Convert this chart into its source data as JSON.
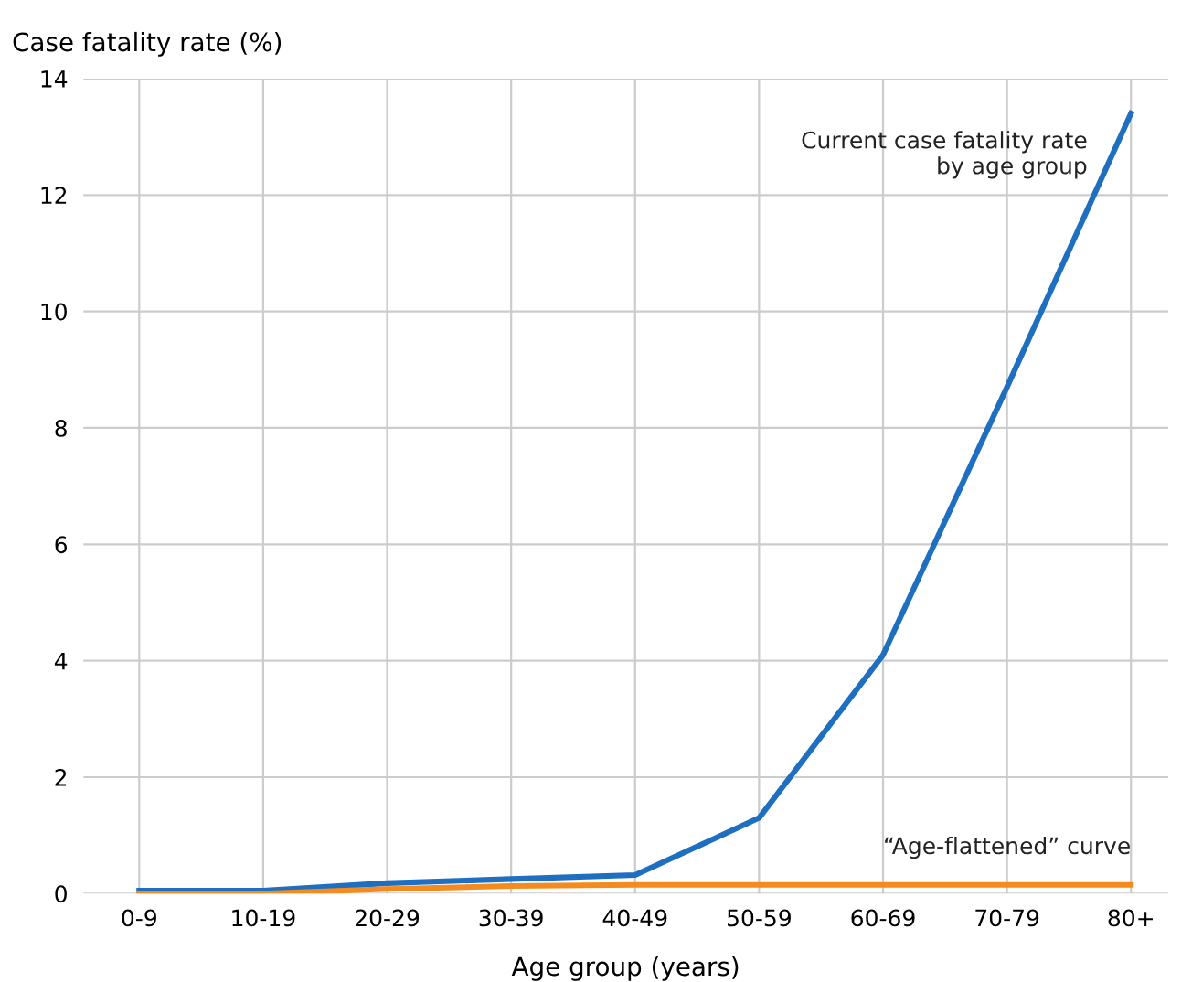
{
  "chart_data": {
    "type": "line",
    "xlabel": "Age group (years)",
    "ylabel": "Case fatality rate (%)",
    "categories": [
      "0-9",
      "10-19",
      "20-29",
      "30-39",
      "40-49",
      "50-59",
      "60-69",
      "70-79",
      "80+"
    ],
    "series": [
      {
        "name": "Current case fatality rate\nby age group",
        "color": "#1f6fc0",
        "values": [
          0.05,
          0.05,
          0.18,
          0.25,
          0.32,
          1.3,
          4.1,
          8.7,
          13.4
        ]
      },
      {
        "name": "“Age-flattened” curve",
        "color": "#f58a1f",
        "values": [
          0,
          0,
          0.08,
          0.13,
          0.15,
          0.15,
          0.15,
          0.15,
          0.15
        ]
      }
    ],
    "ylim": [
      0,
      14
    ],
    "yticks": [
      0,
      2,
      4,
      6,
      8,
      10,
      12,
      14
    ],
    "grid": true,
    "marker": "none",
    "line_style": "solid"
  }
}
